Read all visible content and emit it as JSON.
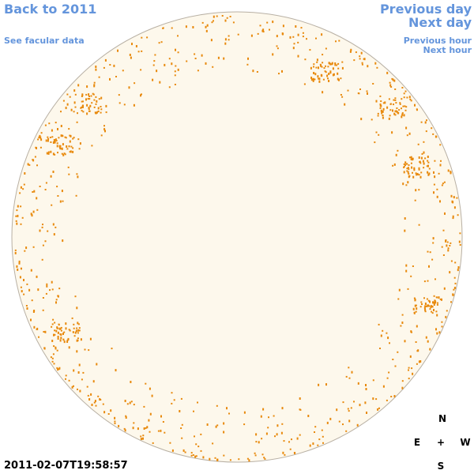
{
  "links": {
    "back": "Back to 2011",
    "facular": "See facular data",
    "previous_day": "Previous day",
    "next_day": "Next day",
    "previous_hour": "Previous hour",
    "next_hour": "Next hour"
  },
  "timestamp": "2011-02-07T19:58:57",
  "compass": {
    "north": "N",
    "east": "E",
    "center": "+",
    "west": "W",
    "south": "S"
  }
}
